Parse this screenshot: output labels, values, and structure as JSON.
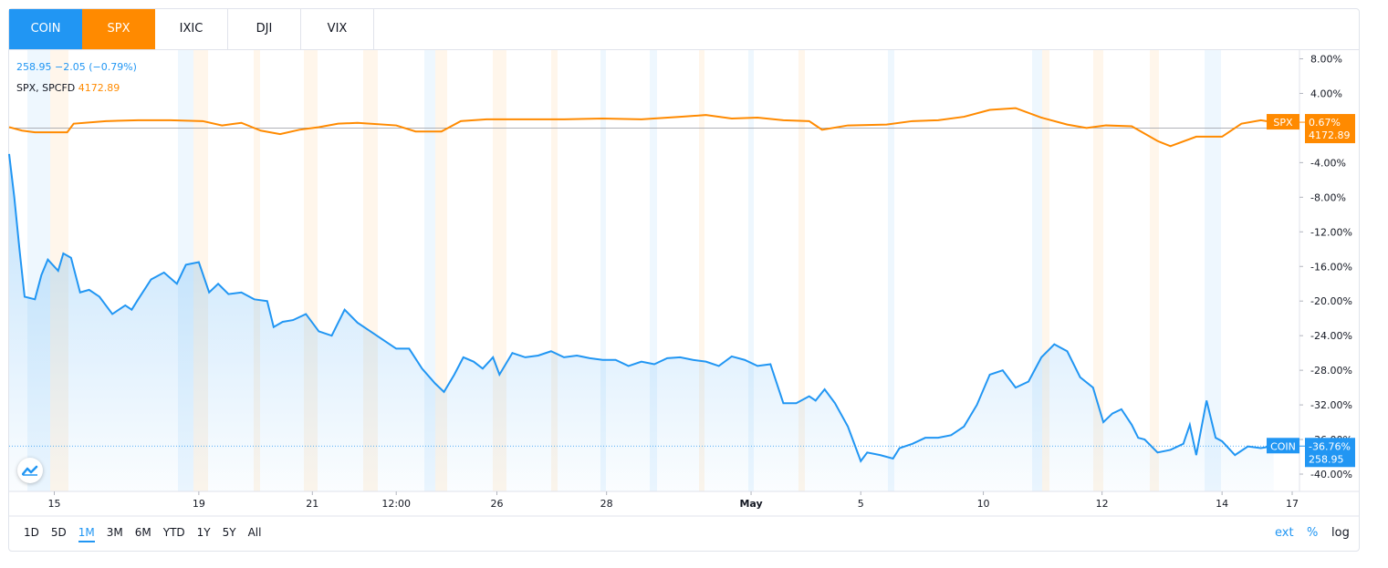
{
  "tabs": [
    {
      "label": "COIN",
      "style": "active-blue"
    },
    {
      "label": "SPX",
      "style": "active-orange"
    },
    {
      "label": "IXIC",
      "style": ""
    },
    {
      "label": "DJI",
      "style": ""
    },
    {
      "label": "VIX",
      "style": ""
    }
  ],
  "legend": {
    "coin_price": "258.95",
    "coin_change": "−2.05 (−0.79%)",
    "spx_label": "SPX, SPCFD",
    "spx_price": "4172.89"
  },
  "colors": {
    "coin": "#2196f3",
    "spx": "#ff8a00"
  },
  "ranges": [
    "1D",
    "5D",
    "1M",
    "3M",
    "6M",
    "YTD",
    "1Y",
    "5Y",
    "All"
  ],
  "active_range": "1M",
  "options": {
    "ext": "ext",
    "percent": "%",
    "log": "log"
  },
  "chart_data": {
    "type": "line",
    "y_unit": "%",
    "ylim": [
      -42,
      9
    ],
    "y_ticks": [
      "8.00%",
      "4.00%",
      "-4.00%",
      "-8.00%",
      "-12.00%",
      "-16.00%",
      "-20.00%",
      "-24.00%",
      "-28.00%",
      "-32.00%",
      "-36.00%",
      "-40.00%"
    ],
    "y_tick_values": [
      8,
      4,
      -4,
      -8,
      -12,
      -16,
      -20,
      -24,
      -28,
      -32,
      -36,
      -40
    ],
    "x_ticks": [
      "15",
      "19",
      "21",
      "12:00",
      "26",
      "28",
      "May",
      "5",
      "10",
      "12",
      "14",
      "17"
    ],
    "x_tick_positions": [
      0.035,
      0.147,
      0.235,
      0.3,
      0.378,
      0.463,
      0.575,
      0.66,
      0.755,
      0.847,
      0.94,
      1.0
    ],
    "series": [
      {
        "name": "SPX",
        "x": [
          0,
          0.01,
          0.02,
          0.045,
          0.05,
          0.075,
          0.1,
          0.125,
          0.15,
          0.165,
          0.18,
          0.195,
          0.21,
          0.225,
          0.24,
          0.255,
          0.27,
          0.3,
          0.315,
          0.335,
          0.35,
          0.37,
          0.4,
          0.43,
          0.46,
          0.49,
          0.52,
          0.54,
          0.56,
          0.58,
          0.6,
          0.62,
          0.63,
          0.65,
          0.68,
          0.7,
          0.72,
          0.74,
          0.76,
          0.78,
          0.8,
          0.82,
          0.835,
          0.85,
          0.87,
          0.89,
          0.9,
          0.92,
          0.94,
          0.955,
          0.97,
          0.98
        ],
        "values": [
          0.1,
          -0.3,
          -0.5,
          -0.5,
          0.5,
          0.8,
          0.9,
          0.9,
          0.8,
          0.3,
          0.6,
          -0.3,
          -0.7,
          -0.2,
          0.1,
          0.5,
          0.6,
          0.3,
          -0.4,
          -0.4,
          0.8,
          1.0,
          1.0,
          1.0,
          1.1,
          1.0,
          1.3,
          1.5,
          1.1,
          1.2,
          0.9,
          0.8,
          -0.2,
          0.3,
          0.4,
          0.8,
          0.9,
          1.3,
          2.1,
          2.3,
          1.2,
          0.4,
          0.0,
          0.3,
          0.2,
          -1.5,
          -2.1,
          -1.0,
          -1.0,
          0.5,
          0.9,
          0.67
        ]
      },
      {
        "name": "COIN",
        "x": [
          0,
          0.004,
          0.008,
          0.012,
          0.02,
          0.025,
          0.03,
          0.038,
          0.042,
          0.048,
          0.055,
          0.062,
          0.07,
          0.08,
          0.09,
          0.095,
          0.1,
          0.11,
          0.12,
          0.13,
          0.137,
          0.147,
          0.155,
          0.162,
          0.17,
          0.18,
          0.19,
          0.2,
          0.205,
          0.212,
          0.22,
          0.23,
          0.24,
          0.25,
          0.26,
          0.27,
          0.28,
          0.29,
          0.3,
          0.31,
          0.32,
          0.33,
          0.337,
          0.345,
          0.352,
          0.36,
          0.367,
          0.375,
          0.38,
          0.39,
          0.4,
          0.41,
          0.42,
          0.43,
          0.44,
          0.45,
          0.46,
          0.47,
          0.48,
          0.49,
          0.5,
          0.51,
          0.52,
          0.53,
          0.54,
          0.55,
          0.56,
          0.57,
          0.58,
          0.59,
          0.6,
          0.61,
          0.62,
          0.625,
          0.632,
          0.64,
          0.65,
          0.66,
          0.665,
          0.675,
          0.685,
          0.69,
          0.7,
          0.71,
          0.72,
          0.73,
          0.74,
          0.75,
          0.76,
          0.77,
          0.78,
          0.79,
          0.8,
          0.81,
          0.82,
          0.83,
          0.84,
          0.848,
          0.855,
          0.862,
          0.87,
          0.875,
          0.88,
          0.89,
          0.9,
          0.91,
          0.915,
          0.92,
          0.928,
          0.935,
          0.94,
          0.945,
          0.95,
          0.96,
          0.97,
          0.98
        ],
        "values": [
          -3,
          -8,
          -14,
          -19.5,
          -19.8,
          -17,
          -15.2,
          -16.5,
          -14.5,
          -15,
          -19,
          -18.7,
          -19.5,
          -21.5,
          -20.5,
          -21,
          -19.8,
          -17.5,
          -16.7,
          -18,
          -15.8,
          -15.5,
          -19,
          -18,
          -19.2,
          -19,
          -19.8,
          -20,
          -23,
          -22.4,
          -22.2,
          -21.5,
          -23.5,
          -24,
          -21,
          -22.5,
          -23.5,
          -24.5,
          -25.5,
          -25.5,
          -27.8,
          -29.5,
          -30.5,
          -28.5,
          -26.5,
          -27,
          -27.8,
          -26.5,
          -28.5,
          -26,
          -26.5,
          -26.3,
          -25.8,
          -26.5,
          -26.3,
          -26.6,
          -26.8,
          -26.8,
          -27.5,
          -27,
          -27.3,
          -26.6,
          -26.5,
          -26.8,
          -27.0,
          -27.5,
          -26.4,
          -26.8,
          -27.5,
          -27.3,
          -31.8,
          -31.8,
          -31.0,
          -31.5,
          -30.2,
          -31.8,
          -34.5,
          -38.5,
          -37.5,
          -37.8,
          -38.2,
          -37.0,
          -36.5,
          -35.8,
          -35.8,
          -35.5,
          -34.5,
          -32.0,
          -28.5,
          -28.0,
          -30.0,
          -29.3,
          -26.5,
          -25.0,
          -25.8,
          -28.8,
          -30.0,
          -34.0,
          -33.0,
          -32.5,
          -34.3,
          -35.8,
          -36.0,
          -37.5,
          -37.2,
          -36.5,
          -34.3,
          -37.8,
          -31.5,
          -35.8,
          -36.2,
          -37.0,
          -37.8,
          -36.8,
          -37.0,
          -36.76
        ]
      }
    ],
    "price_labels": {
      "spx": {
        "name": "SPX",
        "pct": "0.67%",
        "price": "4172.89"
      },
      "coin": {
        "name": "COIN",
        "pct": "-36.76%",
        "price": "258.95"
      }
    },
    "grid": false,
    "legend_placement": "top-left"
  }
}
